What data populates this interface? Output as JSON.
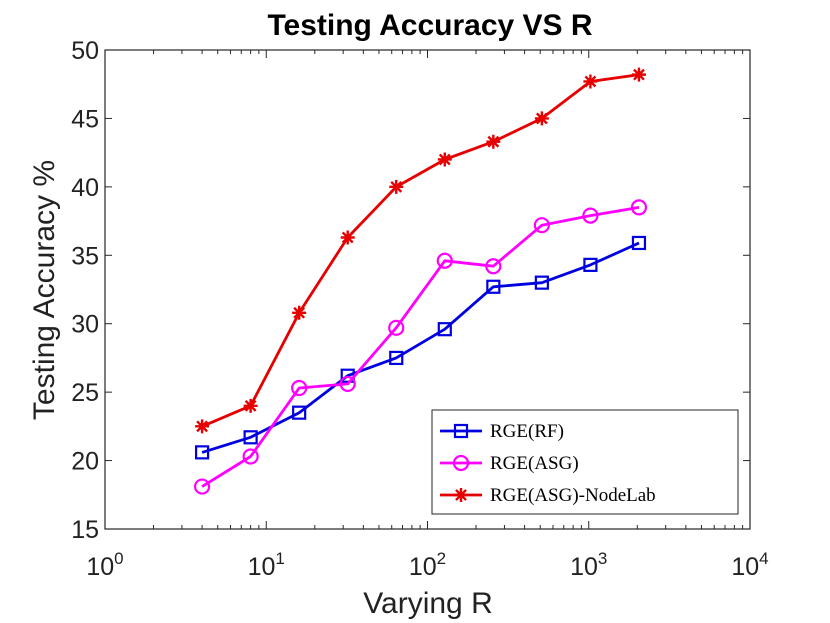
{
  "chart_data": {
    "type": "line",
    "title": "Testing Accuracy VS R",
    "xlabel": "Varying R",
    "ylabel": "Testing Accuracy %",
    "xscale": "log",
    "xlim": [
      1,
      10000
    ],
    "ylim": [
      15,
      50
    ],
    "x": [
      4,
      8,
      16,
      32,
      64,
      128,
      256,
      512,
      1024,
      2048
    ],
    "xticks": [
      {
        "value": 1,
        "base": "10",
        "exp": "0"
      },
      {
        "value": 10,
        "base": "10",
        "exp": "1"
      },
      {
        "value": 100,
        "base": "10",
        "exp": "2"
      },
      {
        "value": 1000,
        "base": "10",
        "exp": "3"
      },
      {
        "value": 10000,
        "base": "10",
        "exp": "4"
      }
    ],
    "yticks": [
      15,
      20,
      25,
      30,
      35,
      40,
      45,
      50
    ],
    "grid": false,
    "legend_position": "bottom-right",
    "series": [
      {
        "name": "RGE(RF)",
        "color": "#0000e0",
        "marker": "square",
        "values": [
          20.6,
          21.7,
          23.5,
          26.2,
          27.5,
          29.6,
          32.7,
          33.0,
          34.3,
          35.9
        ]
      },
      {
        "name": "RGE(ASG)",
        "color": "#ff00ff",
        "marker": "circle",
        "values": [
          18.1,
          20.3,
          25.3,
          25.6,
          29.7,
          34.6,
          34.2,
          37.2,
          37.9,
          38.5
        ]
      },
      {
        "name": "RGE(ASG)-NodeLab",
        "color": "#e60000",
        "marker": "asterisk",
        "values": [
          22.5,
          24.0,
          30.8,
          36.3,
          40.0,
          42.0,
          43.3,
          45.0,
          47.7,
          48.2
        ]
      }
    ]
  }
}
